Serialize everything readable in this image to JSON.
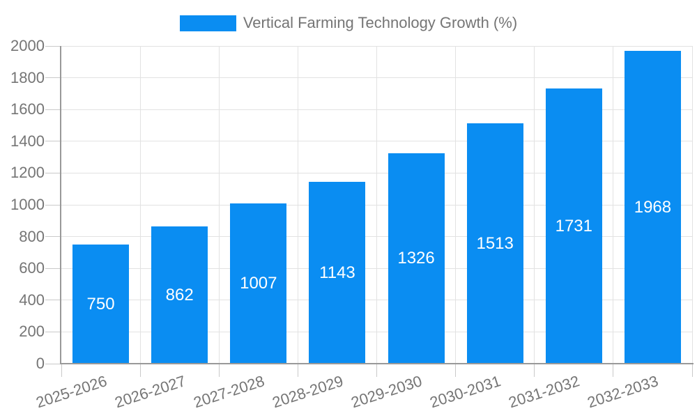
{
  "chart_data": {
    "type": "bar",
    "title": "Vertical Farming Technology Growth (%)",
    "series_name": "Vertical Farming Technology Growth (%)",
    "categories": [
      "2025-2026",
      "2026-2027",
      "2027-2028",
      "2028-2029",
      "2029-2030",
      "2030-2031",
      "2031-2032",
      "2032-2033"
    ],
    "values": [
      750,
      862,
      1007,
      1143,
      1326,
      1513,
      1731,
      1968
    ],
    "xlabel": "",
    "ylabel": "",
    "ylim": [
      0,
      2000
    ],
    "yticks": [
      0,
      200,
      400,
      600,
      800,
      1000,
      1200,
      1400,
      1600,
      1800,
      2000
    ],
    "grid": true,
    "legend_position": "top-center",
    "bar_labels_inside": true,
    "bar_color": "#0a8df2",
    "bar_label_color": "#ffffff",
    "axis_text_color": "#757575",
    "grid_color": "#e2e2e2",
    "tick_color": "#c9c9c9",
    "axis_line_color": "#999999"
  }
}
